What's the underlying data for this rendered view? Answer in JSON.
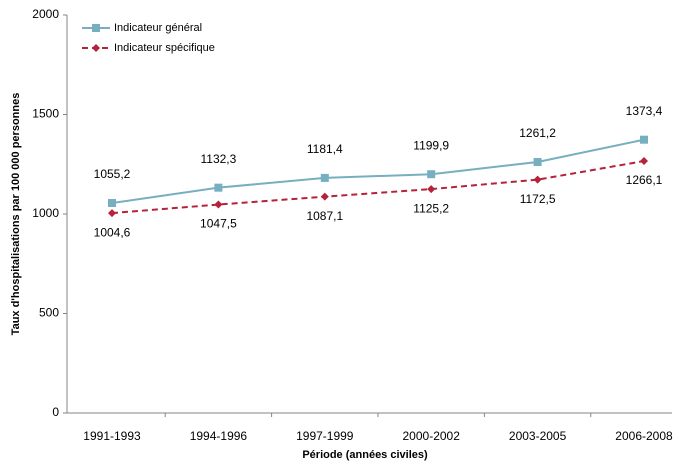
{
  "chart_data": {
    "type": "line",
    "categories": [
      "1991-1993",
      "1994-1996",
      "1997-1999",
      "2000-2002",
      "2003-2005",
      "2006-2008"
    ],
    "series": [
      {
        "name": "Indicateur général",
        "color": "#77aec0",
        "dash": false,
        "marker": "square",
        "values": [
          1055.2,
          1132.3,
          1181.4,
          1199.9,
          1261.2,
          1373.4
        ],
        "value_labels": [
          "1055,2",
          "1132,3",
          "1181,4",
          "1199,9",
          "1261,2",
          "1373,4"
        ]
      },
      {
        "name": "Indicateur spécifique",
        "color": "#b5223a",
        "dash": true,
        "marker": "diamond",
        "values": [
          1004.6,
          1047.5,
          1087.1,
          1125.2,
          1172.5,
          1266.1
        ],
        "value_labels": [
          "1004,6",
          "1047,5",
          "1087,1",
          "1125,2",
          "1172,5",
          "1266,1"
        ]
      }
    ],
    "ylim": [
      0,
      2000
    ],
    "yticks": [
      0,
      500,
      1000,
      1500,
      2000
    ],
    "grid": false,
    "legend": "top-left",
    "xlabel": "Période (années civiles)",
    "ylabel": "Taux d'hospitalisations par 100 000 personnes"
  }
}
